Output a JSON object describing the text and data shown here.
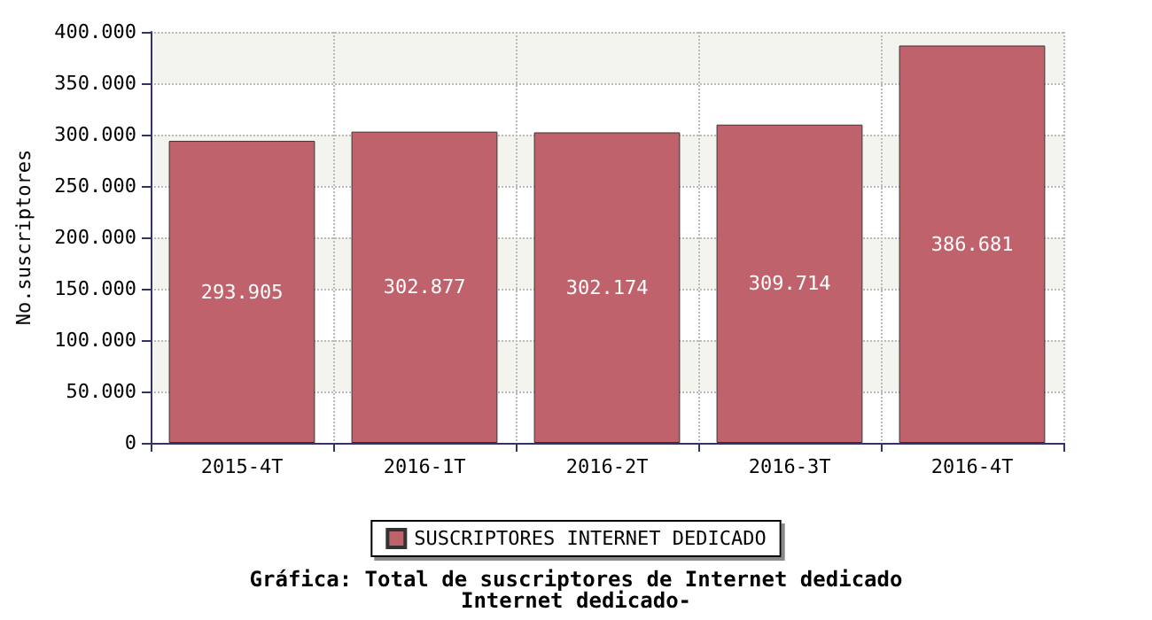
{
  "chart_data": {
    "type": "bar",
    "title": "Gráfica: Total de suscriptores de Internet dedicado",
    "subtitle": "Internet dedicado-",
    "ylabel": "No.suscriptores",
    "categories": [
      "2015-4T",
      "2016-1T",
      "2016-2T",
      "2016-3T",
      "2016-4T"
    ],
    "series": [
      {
        "name": "SUSCRIPTORES INTERNET DEDICADO",
        "color": "#c0626b",
        "values": [
          293905,
          302877,
          302174,
          309714,
          386681
        ],
        "value_labels": [
          "293.905",
          "302.877",
          "302.174",
          "309.714",
          "386.681"
        ]
      }
    ],
    "ylim": [
      0,
      400000
    ],
    "yticks": [
      0,
      {
        "value": 50000,
        "label": "50.000"
      },
      {
        "value": 100000,
        "label": "100.000"
      },
      {
        "value": 150000,
        "label": "150.000"
      },
      {
        "value": 200000,
        "label": "200.000"
      },
      {
        "value": 250000,
        "label": "250.000"
      },
      {
        "value": 300000,
        "label": "300.000"
      },
      {
        "value": 350000,
        "label": "350.000"
      },
      {
        "value": 400000,
        "label": "400.000"
      }
    ],
    "grid": true,
    "legend": "bottom"
  }
}
